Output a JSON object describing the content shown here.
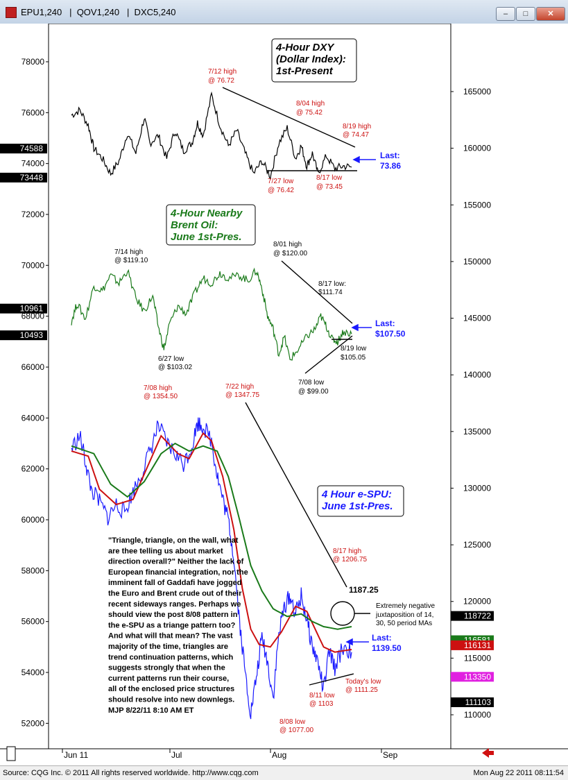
{
  "window": {
    "title": "EPU1,240   |  QOV1,240   |  DXC5,240",
    "btn_min": "–",
    "btn_max": "□",
    "btn_close": "✕"
  },
  "status": {
    "left": "Source: CQG Inc. © 2011 All rights reserved worldwide. http://www.cqg.com",
    "right": "Mon Aug 22 2011 08:11:54"
  },
  "chart_data": {
    "type": "line",
    "x_ticks": [
      "Jun  11",
      "Jul",
      "Aug",
      "Sep"
    ],
    "left_axis": {
      "ticks": [
        52000,
        54000,
        56000,
        58000,
        60000,
        62000,
        64000,
        66000,
        68000,
        70000,
        72000,
        74000,
        76000,
        78000
      ],
      "range": [
        51000,
        79500
      ]
    },
    "right_axis": {
      "ticks": [
        110000,
        115000,
        120000,
        125000,
        130000,
        135000,
        140000,
        145000,
        150000,
        155000,
        160000,
        165000
      ],
      "range": [
        107000,
        171000
      ]
    },
    "left_flags": [
      {
        "label": "74588",
        "value": 74588
      },
      {
        "label": "73448",
        "value": 73448
      },
      {
        "label": "10961",
        "value": 68300
      },
      {
        "label": "10493",
        "value": 67250
      }
    ],
    "right_flags": [
      {
        "label": "118722",
        "value": 118722,
        "bg": "#000000",
        "fg": "#ffffff"
      },
      {
        "label": "116581",
        "value": 116581,
        "bg": "#1a7a1a",
        "fg": "#ffffff"
      },
      {
        "label": "116131",
        "value": 116131,
        "bg": "#cc1010",
        "fg": "#ffffff"
      },
      {
        "label": "113350",
        "value": 113350,
        "bg": "#e020e0",
        "fg": "#ffffff"
      },
      {
        "label": "111103",
        "value": 111103,
        "bg": "#000000",
        "fg": "#ffffff"
      }
    ],
    "panels": [
      {
        "name": "dxy",
        "color": "#000000",
        "line_points": [
          [
            0,
            75900
          ],
          [
            0.03,
            76100
          ],
          [
            0.06,
            75500
          ],
          [
            0.08,
            74600
          ],
          [
            0.11,
            74200
          ],
          [
            0.14,
            73600
          ],
          [
            0.17,
            74100
          ],
          [
            0.2,
            75200
          ],
          [
            0.23,
            74400
          ],
          [
            0.26,
            75800
          ],
          [
            0.28,
            74800
          ],
          [
            0.31,
            75100
          ],
          [
            0.34,
            74200
          ],
          [
            0.37,
            75300
          ],
          [
            0.4,
            74500
          ],
          [
            0.43,
            74800
          ],
          [
            0.45,
            75600
          ],
          [
            0.47,
            75100
          ],
          [
            0.5,
            76700
          ],
          [
            0.53,
            75500
          ],
          [
            0.56,
            74700
          ],
          [
            0.59,
            75300
          ],
          [
            0.62,
            74400
          ],
          [
            0.65,
            73600
          ],
          [
            0.68,
            74100
          ],
          [
            0.71,
            73500
          ],
          [
            0.74,
            74800
          ],
          [
            0.77,
            75400
          ],
          [
            0.8,
            74200
          ],
          [
            0.82,
            74700
          ],
          [
            0.84,
            73900
          ],
          [
            0.86,
            74400
          ],
          [
            0.88,
            73600
          ],
          [
            0.91,
            74300
          ],
          [
            0.94,
            73800
          ],
          [
            0.97,
            73900
          ],
          [
            1.0,
            73860
          ]
        ]
      },
      {
        "name": "brent",
        "color": "#1a7a1a",
        "line_points": [
          [
            0,
            67800
          ],
          [
            0.02,
            68500
          ],
          [
            0.05,
            67900
          ],
          [
            0.08,
            69200
          ],
          [
            0.11,
            69000
          ],
          [
            0.14,
            69600
          ],
          [
            0.17,
            69300
          ],
          [
            0.2,
            69800
          ],
          [
            0.23,
            68700
          ],
          [
            0.26,
            68200
          ],
          [
            0.29,
            68800
          ],
          [
            0.31,
            67600
          ],
          [
            0.33,
            66700
          ],
          [
            0.35,
            67700
          ],
          [
            0.38,
            68400
          ],
          [
            0.41,
            68100
          ],
          [
            0.44,
            68900
          ],
          [
            0.47,
            69500
          ],
          [
            0.5,
            69300
          ],
          [
            0.53,
            69700
          ],
          [
            0.56,
            69500
          ],
          [
            0.6,
            69600
          ],
          [
            0.63,
            69400
          ],
          [
            0.66,
            69800
          ],
          [
            0.68,
            69100
          ],
          [
            0.7,
            68000
          ],
          [
            0.72,
            67500
          ],
          [
            0.74,
            66500
          ],
          [
            0.76,
            67200
          ],
          [
            0.78,
            66300
          ],
          [
            0.81,
            66700
          ],
          [
            0.84,
            67200
          ],
          [
            0.87,
            67500
          ],
          [
            0.89,
            68000
          ],
          [
            0.91,
            67600
          ],
          [
            0.93,
            67100
          ],
          [
            0.95,
            67000
          ],
          [
            0.97,
            67400
          ],
          [
            1.0,
            67300
          ]
        ]
      },
      {
        "name": "espu",
        "color": "#1a1aff",
        "line_points": [
          [
            0,
            62800
          ],
          [
            0.03,
            63300
          ],
          [
            0.05,
            62300
          ],
          [
            0.07,
            61200
          ],
          [
            0.1,
            60700
          ],
          [
            0.13,
            60100
          ],
          [
            0.16,
            60600
          ],
          [
            0.19,
            60300
          ],
          [
            0.22,
            61100
          ],
          [
            0.25,
            61800
          ],
          [
            0.28,
            62700
          ],
          [
            0.31,
            63700
          ],
          [
            0.34,
            63000
          ],
          [
            0.37,
            62600
          ],
          [
            0.4,
            62200
          ],
          [
            0.43,
            62900
          ],
          [
            0.45,
            63800
          ],
          [
            0.47,
            63700
          ],
          [
            0.5,
            63100
          ],
          [
            0.52,
            61800
          ],
          [
            0.54,
            60800
          ],
          [
            0.56,
            60000
          ],
          [
            0.58,
            58500
          ],
          [
            0.6,
            56000
          ],
          [
            0.62,
            54000
          ],
          [
            0.64,
            52400
          ],
          [
            0.66,
            53800
          ],
          [
            0.68,
            55400
          ],
          [
            0.7,
            54400
          ],
          [
            0.72,
            53000
          ],
          [
            0.74,
            55500
          ],
          [
            0.76,
            56600
          ],
          [
            0.78,
            57000
          ],
          [
            0.8,
            56300
          ],
          [
            0.82,
            57000
          ],
          [
            0.84,
            56100
          ],
          [
            0.86,
            55000
          ],
          [
            0.88,
            54400
          ],
          [
            0.9,
            53300
          ],
          [
            0.92,
            54800
          ],
          [
            0.94,
            54200
          ],
          [
            0.97,
            55000
          ],
          [
            1.0,
            54800
          ]
        ]
      },
      {
        "name": "ma14",
        "color": "#cc1010",
        "line_points": [
          [
            0,
            62700
          ],
          [
            0.06,
            62500
          ],
          [
            0.1,
            61200
          ],
          [
            0.16,
            60600
          ],
          [
            0.22,
            60800
          ],
          [
            0.28,
            62300
          ],
          [
            0.32,
            63300
          ],
          [
            0.38,
            62600
          ],
          [
            0.42,
            62400
          ],
          [
            0.47,
            63400
          ],
          [
            0.5,
            63100
          ],
          [
            0.54,
            61700
          ],
          [
            0.58,
            59600
          ],
          [
            0.61,
            57300
          ],
          [
            0.64,
            55700
          ],
          [
            0.67,
            55100
          ],
          [
            0.71,
            55000
          ],
          [
            0.75,
            55600
          ],
          [
            0.8,
            56600
          ],
          [
            0.84,
            56400
          ],
          [
            0.87,
            55700
          ],
          [
            0.9,
            55000
          ],
          [
            0.94,
            54800
          ],
          [
            1.0,
            54900
          ]
        ]
      },
      {
        "name": "ma30",
        "color": "#1a7a1a",
        "line_points": [
          [
            0,
            62900
          ],
          [
            0.08,
            62600
          ],
          [
            0.14,
            61400
          ],
          [
            0.2,
            60900
          ],
          [
            0.26,
            61500
          ],
          [
            0.32,
            62600
          ],
          [
            0.37,
            63000
          ],
          [
            0.42,
            62700
          ],
          [
            0.47,
            62900
          ],
          [
            0.52,
            62700
          ],
          [
            0.56,
            61700
          ],
          [
            0.6,
            60000
          ],
          [
            0.64,
            58200
          ],
          [
            0.68,
            57200
          ],
          [
            0.72,
            56500
          ],
          [
            0.77,
            56200
          ],
          [
            0.82,
            56300
          ],
          [
            0.86,
            56000
          ],
          [
            0.9,
            55800
          ],
          [
            0.95,
            55700
          ],
          [
            1.0,
            55800
          ]
        ]
      }
    ],
    "annotations": [
      {
        "text": "7/12 high",
        "color": "#cc1010"
      },
      {
        "text": "@ 76.72",
        "color": "#cc1010"
      },
      {
        "text": "8/04 high",
        "color": "#cc1010"
      },
      {
        "text": "@ 75.42",
        "color": "#cc1010"
      },
      {
        "text": "8/19 high",
        "color": "#cc1010"
      },
      {
        "text": "@ 74.47",
        "color": "#cc1010"
      },
      {
        "text": "7/27 low",
        "color": "#cc1010"
      },
      {
        "text": "@ 76.42",
        "color": "#cc1010"
      },
      {
        "text": "8/17 low",
        "color": "#cc1010"
      },
      {
        "text": "@ 73.45",
        "color": "#cc1010"
      },
      {
        "text": "Last:",
        "color": "#1a1aff"
      },
      {
        "text": "73.86",
        "color": "#1a1aff"
      },
      {
        "text": "7/14 high",
        "color": "#000000"
      },
      {
        "text": "@ $119.10",
        "color": "#000000"
      },
      {
        "text": "8/01 high",
        "color": "#000000"
      },
      {
        "text": "@ $120.00",
        "color": "#000000"
      },
      {
        "text": "8/17 low:",
        "color": "#000000"
      },
      {
        "text": "$111.74",
        "color": "#000000"
      },
      {
        "text": "Last:",
        "color": "#1a1aff"
      },
      {
        "text": "$107.50",
        "color": "#1a1aff"
      },
      {
        "text": "6/27 low",
        "color": "#000000"
      },
      {
        "text": "@ $103.02",
        "color": "#000000"
      },
      {
        "text": "8/19 low",
        "color": "#000000"
      },
      {
        "text": "$105.05",
        "color": "#000000"
      },
      {
        "text": "7/08 low",
        "color": "#000000"
      },
      {
        "text": "@ $99.00",
        "color": "#000000"
      },
      {
        "text": "7/08 high",
        "color": "#cc1010"
      },
      {
        "text": "@ 1354.50",
        "color": "#cc1010"
      },
      {
        "text": "7/22 high",
        "color": "#cc1010"
      },
      {
        "text": "@ 1347.75",
        "color": "#cc1010"
      },
      {
        "text": "8/17 high",
        "color": "#cc1010"
      },
      {
        "text": "@ 1206.75",
        "color": "#cc1010"
      },
      {
        "text": "1187.25",
        "color": "#000000"
      },
      {
        "text": "Extremely negative",
        "color": "#000000"
      },
      {
        "text": "juxtaposition of 14,",
        "color": "#000000"
      },
      {
        "text": "30, 50 period MAs",
        "color": "#000000"
      },
      {
        "text": "Last:",
        "color": "#1a1aff"
      },
      {
        "text": "1139.50",
        "color": "#1a1aff"
      },
      {
        "text": "Today's low",
        "color": "#cc1010"
      },
      {
        "text": "@ 1111.25",
        "color": "#cc1010"
      },
      {
        "text": "8/11 low",
        "color": "#cc1010"
      },
      {
        "text": "@ 1103",
        "color": "#cc1010"
      },
      {
        "text": "8/08 low",
        "color": "#cc1010"
      },
      {
        "text": "@ 1077.00",
        "color": "#cc1010"
      }
    ],
    "boxes": [
      {
        "lines": [
          "4-Hour DXY",
          "(Dollar Index):",
          "1st-Present"
        ],
        "color": "#000000"
      },
      {
        "lines": [
          "4-Hour Nearby",
          "Brent Oil:",
          "June 1st-Pres."
        ],
        "color": "#1a7a1a"
      },
      {
        "lines": [
          "4 Hour e-SPU:",
          "June 1st-Pres."
        ],
        "color": "#1a1aff"
      }
    ],
    "commentary": [
      "\"Triangle, triangle, on the wall, what",
      "are thee telling us about market",
      "direction overall?\" Neither the lack of",
      "European financial integration, nor the",
      "imminent fall of Gaddafi have jogged",
      "the Euro and Brent crude out of their",
      "recent sideways ranges. Perhaps we",
      "should view the post 8/08 pattern in",
      "the e-SPU as a triange pattern too?",
      "And what will that mean?  The vast",
      "majority of the time, triangles are",
      "trend continuation patterns, which",
      "suggests strongly that when the",
      "current patterns run their course,",
      "all of the enclosed price structures",
      "should resolve into new downlegs.",
      "MJP  8/22/11 8:10 AM ET"
    ]
  }
}
